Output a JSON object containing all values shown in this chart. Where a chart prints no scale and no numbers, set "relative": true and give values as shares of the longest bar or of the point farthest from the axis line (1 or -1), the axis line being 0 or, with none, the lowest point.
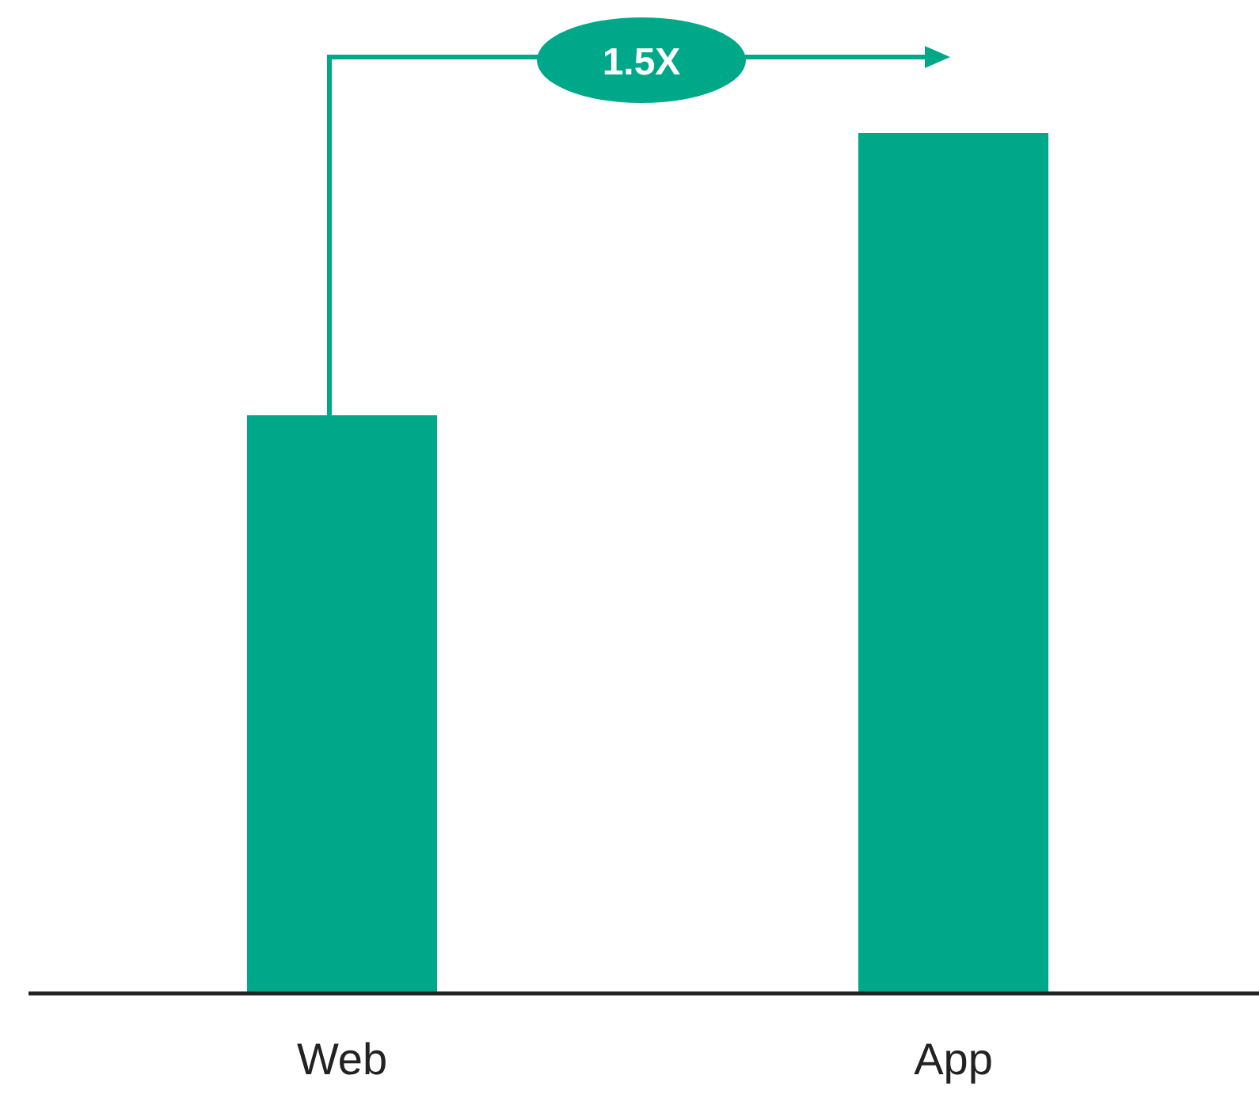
{
  "chart_data": {
    "type": "bar",
    "relative": true,
    "categories": [
      "Web",
      "App"
    ],
    "values": [
      0.672,
      1
    ],
    "color": "#00a88a",
    "annotations": [
      "1.5X"
    ]
  }
}
